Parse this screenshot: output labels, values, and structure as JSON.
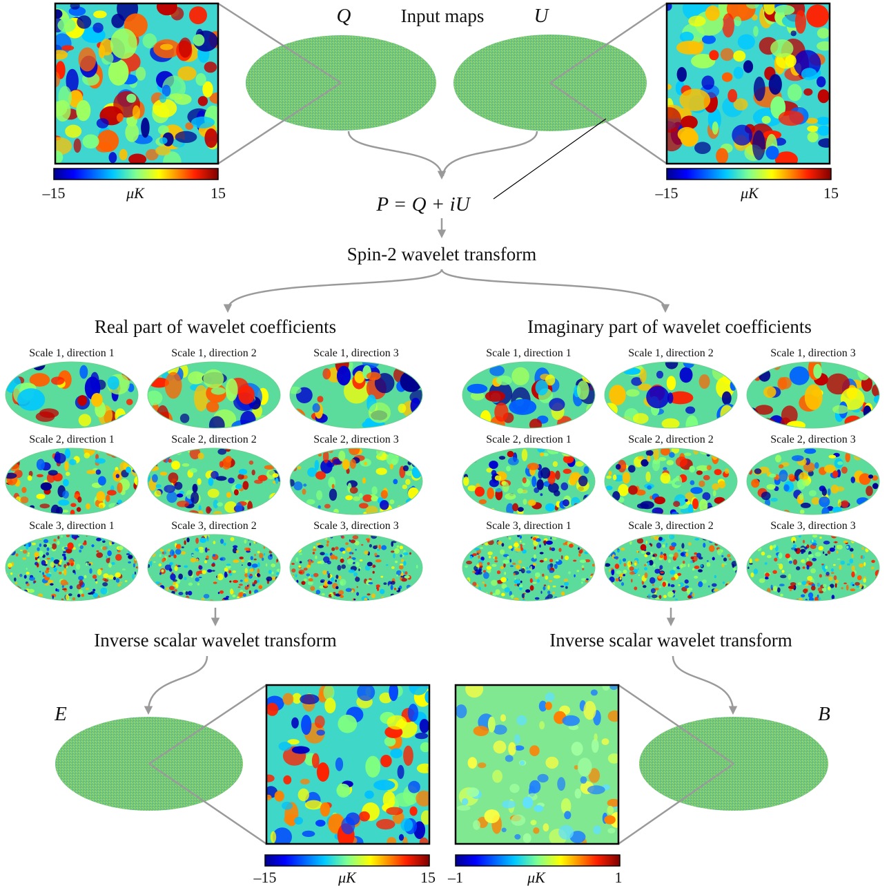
{
  "input": {
    "title": "Input maps",
    "q_label": "Q",
    "u_label": "U",
    "combine_formula": "P = Q + iU"
  },
  "transform_title": "Spin-2 wavelet transform",
  "real_panel": {
    "title": "Real part of wavelet coefficients",
    "maps": [
      "Scale 1, direction 1",
      "Scale 1, direction 2",
      "Scale 1, direction 3",
      "Scale 2, direction 1",
      "Scale 2, direction 2",
      "Scale 2, direction 3",
      "Scale 3, direction 1",
      "Scale 3, direction 2",
      "Scale 3, direction 3"
    ]
  },
  "imag_panel": {
    "title": "Imaginary part of wavelet coefficients",
    "maps": [
      "Scale 1, direction 1",
      "Scale 1, direction 2",
      "Scale 1, direction 3",
      "Scale 2, direction 1",
      "Scale 2, direction 2",
      "Scale 2, direction 3",
      "Scale 3, direction 1",
      "Scale 3, direction 2",
      "Scale 3, direction 3"
    ]
  },
  "inverse_left": "Inverse scalar wavelet transform",
  "inverse_right": "Inverse scalar wavelet transform",
  "output": {
    "e_label": "E",
    "b_label": "B"
  },
  "colorbars": {
    "q_patch": {
      "min": "–15",
      "unit": "μK",
      "max": "15"
    },
    "u_patch": {
      "min": "–15",
      "unit": "μK",
      "max": "15"
    },
    "e_patch": {
      "min": "–15",
      "unit": "μK",
      "max": "15"
    },
    "b_patch": {
      "min": "–1",
      "unit": "μK",
      "max": "1"
    }
  },
  "colors": {
    "arrow": "#9a9a9a",
    "map_base": "#66cc66",
    "colormap": [
      "#00008f",
      "#0000ff",
      "#00bfff",
      "#7fff7f",
      "#ffff00",
      "#ff7f00",
      "#ff0000",
      "#800000"
    ]
  }
}
